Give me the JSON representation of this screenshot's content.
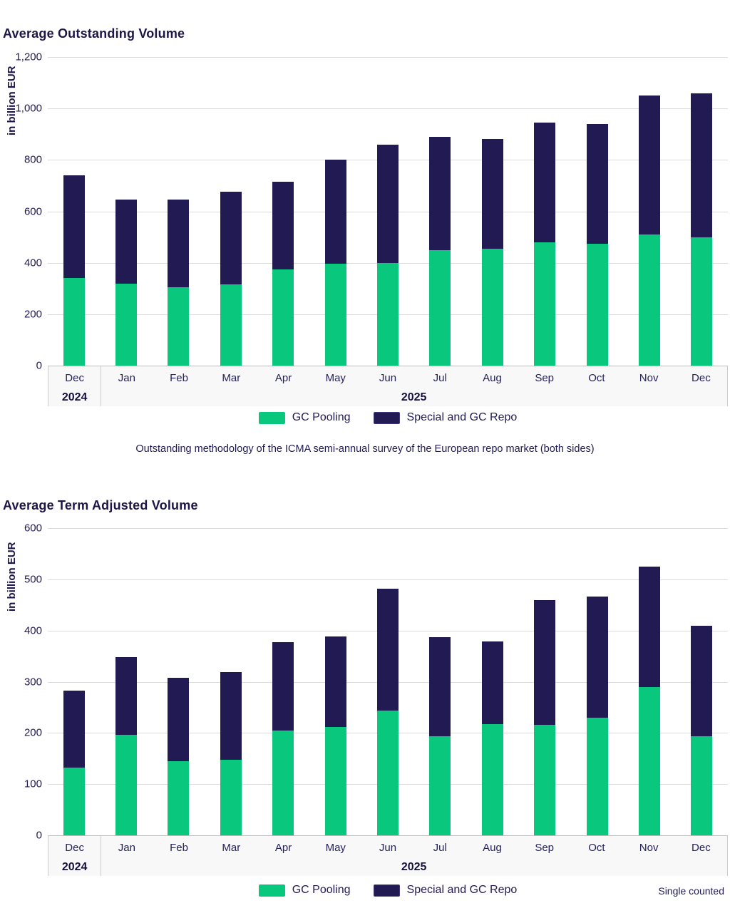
{
  "footnote": "Single counted",
  "legend": {
    "gc_pooling_label": "GC Pooling",
    "special_repo_label": "Special and GC Repo"
  },
  "colors": {
    "gc_pooling": "#09C87D",
    "special_gc_repo": "#221A52",
    "text_navy": "#201A52",
    "gridline": "#DBDBDB"
  },
  "chart_data": [
    {
      "type": "bar",
      "stacked": true,
      "title": "Average Outstanding Volume",
      "ylabel": "in billion EUR",
      "ylim": [
        0,
        1200
      ],
      "ytick_labels": [
        "0",
        "200",
        "400",
        "600",
        "800",
        "1,000",
        "1,200"
      ],
      "grid": true,
      "legend_position": "bottom",
      "categories": [
        "Dec",
        "Jan",
        "Feb",
        "Mar",
        "Apr",
        "May",
        "Jun",
        "Jul",
        "Aug",
        "Sep",
        "Oct",
        "Nov",
        "Dec"
      ],
      "year_groups": [
        {
          "label": "2024",
          "span": 1
        },
        {
          "label": "2025",
          "span": 12
        }
      ],
      "series": [
        {
          "name": "GC Pooling",
          "color": "#09C87D",
          "values": [
            340,
            320,
            305,
            315,
            375,
            395,
            400,
            450,
            455,
            480,
            475,
            510,
            500
          ]
        },
        {
          "name": "Special and GC Repo",
          "color": "#221A52",
          "values": [
            400,
            325,
            340,
            360,
            340,
            405,
            460,
            440,
            425,
            465,
            465,
            540,
            560
          ]
        }
      ],
      "totals": [
        740,
        645,
        645,
        675,
        715,
        800,
        860,
        890,
        880,
        945,
        940,
        1050,
        1060
      ],
      "caption": "Outstanding methodology of the ICMA semi-annual survey of the European repo market (both sides)"
    },
    {
      "type": "bar",
      "stacked": true,
      "title": "Average Term Adjusted Volume",
      "ylabel": "in billion EUR",
      "ylim": [
        0,
        600
      ],
      "ytick_labels": [
        "0",
        "100",
        "200",
        "300",
        "400",
        "500",
        "600"
      ],
      "grid": true,
      "legend_position": "bottom",
      "categories": [
        "Dec",
        "Jan",
        "Feb",
        "Mar",
        "Apr",
        "May",
        "Jun",
        "Jul",
        "Aug",
        "Sep",
        "Oct",
        "Nov",
        "Dec"
      ],
      "year_groups": [
        {
          "label": "2024",
          "span": 1
        },
        {
          "label": "2025",
          "span": 12
        }
      ],
      "series": [
        {
          "name": "GC Pooling",
          "color": "#09C87D",
          "values": [
            132,
            196,
            145,
            147,
            204,
            211,
            244,
            193,
            217,
            216,
            230,
            289,
            194
          ]
        },
        {
          "name": "Special and GC Repo",
          "color": "#221A52",
          "values": [
            151,
            152,
            163,
            172,
            173,
            178,
            238,
            194,
            162,
            244,
            236,
            236,
            216
          ]
        }
      ],
      "totals": [
        283,
        348,
        308,
        319,
        377,
        389,
        482,
        387,
        379,
        460,
        466,
        525,
        410
      ],
      "footnote": "Single counted"
    }
  ]
}
